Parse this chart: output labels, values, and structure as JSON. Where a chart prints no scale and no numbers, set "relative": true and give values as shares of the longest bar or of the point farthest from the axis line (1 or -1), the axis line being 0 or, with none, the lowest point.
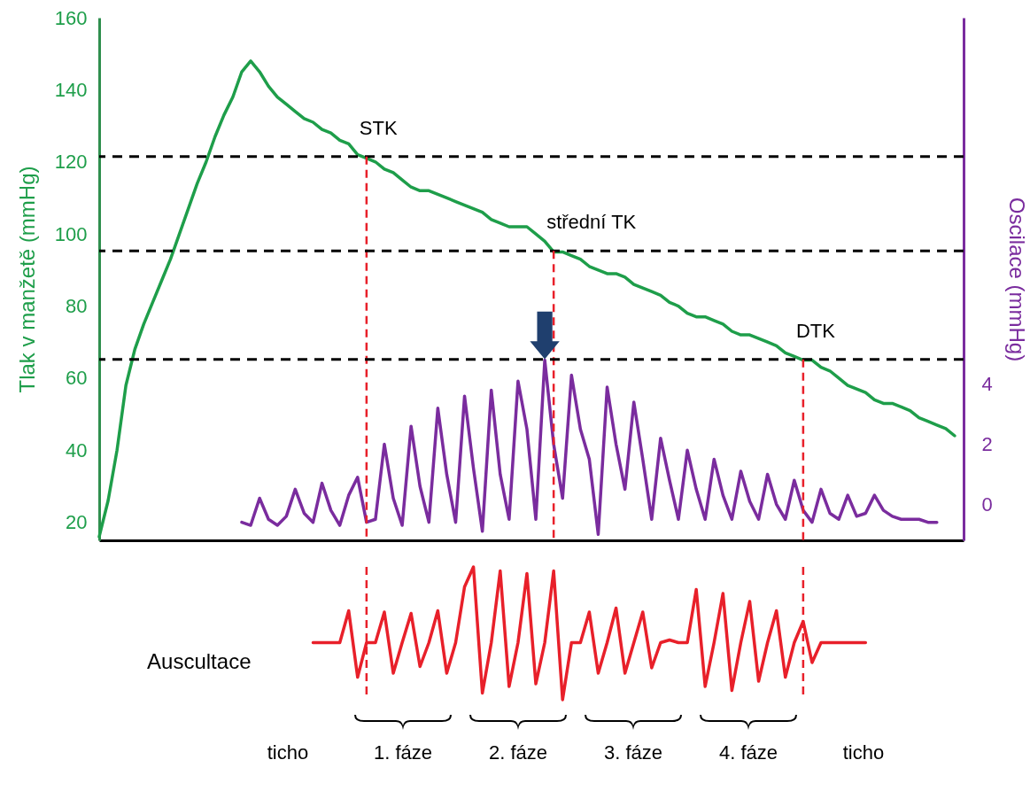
{
  "chart_data": [
    {
      "type": "line",
      "categories": [
        null,
        null,
        null,
        null,
        null,
        null,
        null,
        null,
        null,
        null,
        null,
        null,
        null,
        null,
        null,
        null,
        null,
        null,
        null,
        null,
        null,
        null,
        null,
        null,
        null,
        null,
        null,
        null,
        null,
        null,
        null,
        null,
        null,
        null,
        null,
        null,
        null,
        null,
        null,
        null,
        null,
        null,
        null,
        null,
        null,
        null,
        null,
        null,
        null,
        null,
        null,
        null,
        null,
        null,
        null,
        null,
        null,
        null,
        null,
        null,
        null,
        null,
        null,
        null,
        null,
        null,
        null,
        null,
        null,
        null,
        null,
        null,
        null,
        null,
        null,
        null,
        null,
        null,
        null,
        null,
        null,
        null,
        null,
        null,
        null,
        null,
        null,
        null,
        null,
        null,
        null,
        null,
        null,
        null,
        null,
        null,
        null,
        null
      ],
      "ylabel": "Tlak v manžetě (mmHg)",
      "y2label": "Oscilace (mmHg)",
      "ylim": [
        15,
        160
      ],
      "yticks": [
        20,
        40,
        60,
        80,
        100,
        120,
        140,
        160
      ],
      "y2lim": [
        -1.2,
        16.2
      ],
      "y2ticks": [
        0,
        2,
        4
      ],
      "series": [
        {
          "color": "#1e9e4a",
          "values": [
            16,
            26,
            40,
            58,
            68,
            75,
            81,
            87,
            93,
            100,
            107,
            114,
            120,
            127,
            133,
            138,
            145,
            148,
            145,
            141,
            138,
            136,
            134,
            132,
            131,
            129,
            128,
            126,
            125,
            122,
            121,
            120,
            118,
            117,
            115,
            113,
            112,
            112,
            111,
            110,
            109,
            108,
            107,
            106,
            104,
            103,
            102,
            102,
            102,
            100,
            98,
            95,
            95,
            94,
            93,
            91,
            90,
            89,
            89,
            88,
            86,
            85,
            84,
            83,
            81,
            80,
            78,
            77,
            77,
            76,
            75,
            73,
            72,
            72,
            71,
            70,
            69,
            67,
            66,
            65,
            65,
            63,
            62,
            60,
            58,
            57,
            56,
            54,
            53,
            53,
            52,
            51,
            49,
            48,
            47,
            46,
            44,
            null
          ]
        },
        {
          "color": "#7a2c9e",
          "axis": "y2",
          "values": [
            null,
            null,
            null,
            null,
            null,
            null,
            null,
            null,
            null,
            null,
            null,
            null,
            null,
            null,
            null,
            null,
            -0.6,
            -0.7,
            0.2,
            -0.5,
            -0.7,
            -0.4,
            0.5,
            -0.3,
            -0.6,
            0.7,
            -0.2,
            -0.7,
            0.3,
            0.9,
            -0.6,
            -0.5,
            2.0,
            0.2,
            -0.7,
            2.6,
            0.6,
            -0.6,
            3.2,
            1.0,
            -0.6,
            3.6,
            1.2,
            -0.9,
            3.8,
            1.0,
            -0.5,
            4.1,
            2.5,
            -0.5,
            4.8,
            2.0,
            0.2,
            4.3,
            2.5,
            1.5,
            -1.0,
            3.9,
            2.0,
            0.5,
            3.4,
            1.5,
            -0.5,
            2.2,
            0.8,
            -0.5,
            1.8,
            0.5,
            -0.5,
            1.5,
            0.3,
            -0.5,
            1.1,
            0.1,
            -0.5,
            1.0,
            0.0,
            -0.5,
            0.8,
            -0.2,
            -0.6,
            0.5,
            -0.3,
            -0.5,
            0.3,
            -0.4,
            -0.3,
            0.3,
            -0.2,
            -0.4,
            -0.5,
            -0.5,
            -0.5,
            -0.6,
            -0.6,
            null,
            null,
            null
          ]
        }
      ],
      "ref_lines": [
        {
          "axis": "y",
          "value": 121.5,
          "label": "STK",
          "color": "#000000",
          "line_style": "dashed"
        },
        {
          "axis": "y",
          "value": 95.3,
          "label": "střední TK",
          "color": "#000000",
          "line_style": "dashed"
        },
        {
          "axis": "y",
          "value": 65.2,
          "label": "DTK",
          "color": "#000000",
          "line_style": "dashed"
        }
      ]
    },
    {
      "type": "line",
      "relative": true,
      "categories": [
        null,
        null,
        null,
        null,
        null,
        null,
        null,
        null,
        null,
        null,
        null,
        null,
        null,
        null,
        null,
        null,
        null,
        null,
        null,
        null,
        null,
        null,
        null,
        null,
        null,
        null,
        null,
        null,
        null,
        null,
        null,
        null,
        null,
        null,
        null,
        null,
        null,
        null,
        null,
        null,
        null,
        null,
        null,
        null,
        null,
        null,
        null,
        null,
        null,
        null,
        null,
        null,
        null,
        null,
        null,
        null,
        null,
        null,
        null,
        null,
        null,
        null,
        null,
        null,
        null,
        null,
        null,
        null,
        null,
        null,
        null,
        null,
        null,
        null,
        null,
        null,
        null,
        null,
        null,
        null,
        null,
        null,
        null,
        null,
        null,
        null,
        null,
        null,
        null,
        null,
        null,
        null,
        null,
        null,
        null,
        null,
        null,
        null
      ],
      "series": [
        {
          "name": "Auscultace",
          "color": "#e8202a",
          "values": [
            null,
            null,
            null,
            null,
            null,
            null,
            null,
            null,
            null,
            null,
            null,
            null,
            null,
            null,
            null,
            null,
            null,
            null,
            null,
            null,
            null,
            null,
            null,
            null,
            0.43,
            0.43,
            0.43,
            0.43,
            0.67,
            0.17,
            0.43,
            0.43,
            0.66,
            0.2,
            0.43,
            0.65,
            0.25,
            0.43,
            0.67,
            0.2,
            0.43,
            0.85,
            1,
            0.05,
            0.43,
            0.97,
            0.1,
            0.43,
            0.95,
            0.12,
            0.43,
            0.97,
            0,
            0.43,
            0.43,
            0.66,
            0.2,
            0.43,
            0.69,
            0.2,
            0.43,
            0.66,
            0.24,
            0.43,
            0.45,
            0.43,
            0.43,
            0.83,
            0.1,
            0.43,
            0.8,
            0.07,
            0.43,
            0.74,
            0.14,
            0.43,
            0.67,
            0.17,
            0.43,
            0.59,
            0.28,
            0.43,
            0.43,
            0.43,
            0.43,
            0.43,
            0.43,
            null,
            null,
            null,
            null,
            null,
            null,
            null,
            null,
            null,
            null,
            null
          ]
        }
      ],
      "annotations": [
        "ticho",
        "1. fáze",
        "2. fáze",
        "3. fáze",
        "4. fáze",
        "ticho"
      ]
    }
  ]
}
